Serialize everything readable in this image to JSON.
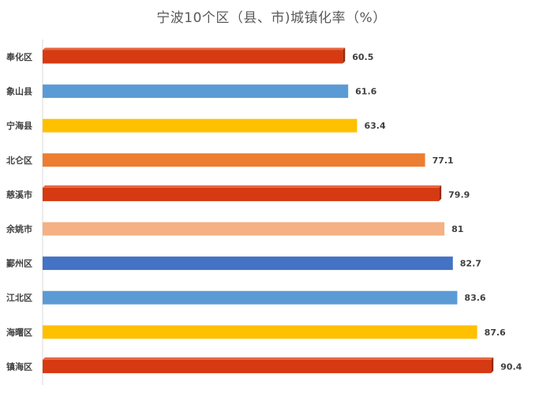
{
  "chart_data": {
    "type": "bar",
    "orientation": "horizontal",
    "title": "宁波10个区（县、市)城镇化率（%）",
    "xlabel": "",
    "ylabel": "",
    "categories": [
      "奉化区",
      "象山县",
      "宁海县",
      "北仑区",
      "慈溪市",
      "余姚市",
      "鄞州区",
      "江北区",
      "海曙区",
      "镇海区"
    ],
    "values": [
      60.5,
      61.6,
      63.4,
      77.1,
      79.9,
      81,
      82.7,
      83.6,
      87.6,
      90.4
    ],
    "value_labels": [
      "60.5",
      "61.6",
      "63.4",
      "77.1",
      "79.9",
      "81",
      "82.7",
      "83.6",
      "87.6",
      "90.4"
    ],
    "colors": [
      "#d63a12",
      "#5b9bd5",
      "#ffc000",
      "#ed7d31",
      "#d63a12",
      "#f4b183",
      "#4472c4",
      "#5b9bd5",
      "#ffc000",
      "#d63a12"
    ],
    "bar_3d": [
      true,
      false,
      false,
      false,
      true,
      false,
      false,
      false,
      false,
      true
    ],
    "xlim": [
      0,
      100
    ],
    "grid": false,
    "legend": "none"
  }
}
